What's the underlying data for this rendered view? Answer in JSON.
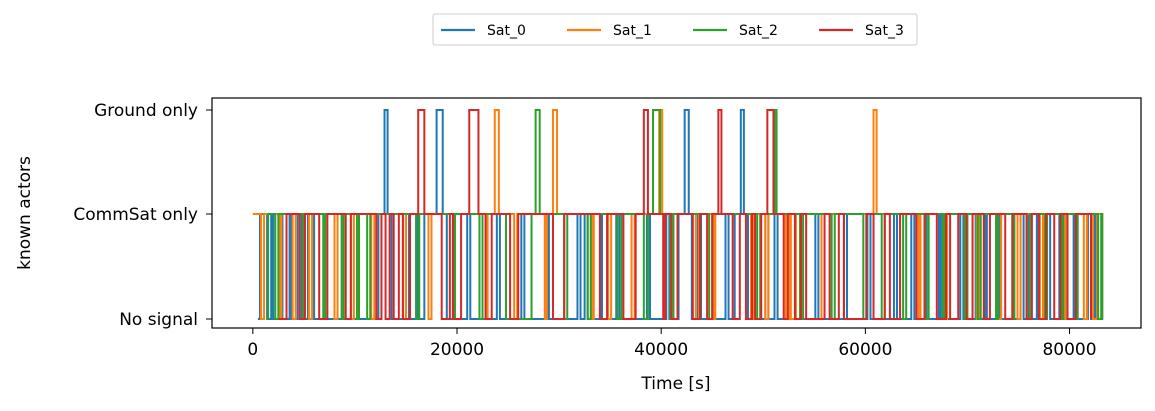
{
  "chart_data": {
    "type": "line",
    "step": true,
    "xlabel": "Time [s]",
    "ylabel": "known actors",
    "xlim": [
      -4000,
      87000
    ],
    "x_ticks": [
      0,
      20000,
      40000,
      60000,
      80000
    ],
    "x_tick_labels": [
      "0",
      "20000",
      "40000",
      "60000",
      "80000"
    ],
    "y_levels": [
      0,
      1,
      2
    ],
    "y_tick_labels": [
      "No signal",
      "CommSat only",
      "Ground only"
    ],
    "legend": {
      "placement": "top-center",
      "columns": 4
    },
    "series": [
      {
        "name": "Sat_0",
        "color": "#1f77b4",
        "levels": [
          0,
          1,
          0,
          1,
          0,
          1,
          0,
          1,
          0,
          1,
          0,
          1,
          0,
          1,
          2,
          1,
          0,
          1,
          0,
          1,
          0,
          1,
          2,
          1,
          0,
          1,
          0,
          1,
          0,
          1,
          0,
          1,
          0,
          1,
          0,
          1,
          0,
          1,
          0,
          1,
          0,
          1,
          0,
          1,
          0,
          1,
          2,
          1,
          0,
          1,
          0,
          1,
          0,
          1,
          2,
          1,
          0,
          1,
          0,
          1,
          0,
          1,
          0,
          1,
          0,
          1,
          0,
          1,
          0,
          1,
          0,
          1,
          0,
          1,
          0,
          1,
          0,
          1,
          0,
          1,
          0,
          1,
          0,
          1,
          0,
          1,
          0,
          1,
          0,
          1,
          0,
          1,
          0,
          1,
          0,
          1,
          0,
          1,
          0,
          1,
          0,
          1
        ],
        "changes": [
          500,
          700,
          1400,
          1800,
          2000,
          2600,
          2900,
          3600,
          3800,
          4400,
          4800,
          5400,
          6000,
          12300,
          12900,
          13200,
          13600,
          15000,
          15300,
          16000,
          16200,
          16800,
          18000,
          18600,
          19000,
          21000,
          21300,
          23900,
          24200,
          26300,
          26600,
          28800,
          29000,
          31800,
          32100,
          32500,
          32800,
          34000,
          34200,
          35600,
          35900,
          38600,
          38900,
          40500,
          40800,
          41700,
          42300,
          42700,
          43000,
          43600,
          43900,
          46300,
          46600,
          47200,
          47800,
          48100,
          48500,
          50200,
          50500,
          51100,
          51400,
          55100,
          55400,
          57900,
          58200,
          60200,
          60500,
          62800,
          63100,
          64500,
          64800,
          65800,
          66000,
          67200,
          67400,
          69300,
          69600,
          70800,
          71100,
          71700,
          71900,
          73000,
          73200,
          75200,
          75500,
          76000,
          76300,
          76800,
          77000,
          77700,
          78100,
          79000,
          79300,
          80400,
          80700,
          81800,
          82100,
          82400,
          82600,
          83200
        ]
      },
      {
        "name": "Sat_1",
        "color": "#ff7f0e",
        "levels": [
          1,
          0,
          1,
          0,
          1,
          0,
          1,
          0,
          1,
          0,
          1,
          0,
          1,
          0,
          1,
          0,
          1,
          0,
          1,
          0,
          1,
          2,
          1,
          0,
          1,
          0,
          1,
          2,
          1,
          0,
          1,
          0,
          1,
          0,
          1,
          2,
          1,
          0,
          1,
          0,
          1,
          0,
          1,
          0,
          1,
          0,
          1,
          0,
          1,
          0,
          1,
          2,
          1,
          0,
          1,
          0,
          1,
          0,
          1,
          0,
          1,
          0,
          1,
          0,
          1,
          0,
          1,
          0,
          1,
          0,
          1,
          0,
          1,
          0,
          1,
          0,
          1,
          0,
          1,
          0,
          1,
          0,
          1,
          0,
          1,
          0,
          1,
          0,
          1,
          0,
          1,
          0,
          1,
          0
        ],
        "changes": [
          0,
          800,
          1100,
          2600,
          2800,
          3900,
          4200,
          5500,
          5800,
          8000,
          8300,
          9600,
          9900,
          11600,
          11900,
          14700,
          15000,
          17200,
          17500,
          22800,
          23000,
          23700,
          24100,
          25600,
          25900,
          28600,
          28800,
          29400,
          29800,
          33200,
          33400,
          34800,
          35100,
          37100,
          37400,
          39800,
          40100,
          43400,
          43700,
          45100,
          45300,
          48800,
          49100,
          50200,
          50500,
          52200,
          52500,
          52700,
          53200,
          55700,
          56000,
          60800,
          61100,
          65200,
          65400,
          67700,
          68000,
          70900,
          71200,
          73000,
          73300,
          74900,
          75200,
          77100,
          77400,
          79300,
          79600,
          81400,
          81700,
          82300,
          82700,
          83200
        ]
      },
      {
        "name": "Sat_2",
        "color": "#2ca02c",
        "levels": [
          0,
          1,
          0,
          1,
          0,
          1,
          0,
          1,
          0,
          1,
          0,
          1,
          0,
          1,
          0,
          1,
          0,
          1,
          0,
          1,
          0,
          1,
          2,
          1,
          0,
          1,
          0,
          1,
          0,
          1,
          0,
          1,
          2,
          1,
          0,
          1,
          0,
          1,
          0,
          1,
          2,
          1,
          0,
          1,
          0,
          1,
          0,
          1,
          0,
          1,
          0,
          1,
          0,
          1,
          0,
          1,
          0,
          1,
          0,
          1,
          0,
          1,
          0,
          1,
          0,
          1,
          0,
          1,
          0,
          1,
          0,
          1,
          0,
          1,
          0,
          1,
          0,
          1,
          0,
          1,
          0,
          1,
          0,
          1,
          0,
          1,
          0,
          1,
          0,
          1,
          0,
          1,
          0,
          1,
          0,
          1,
          0,
          1
        ],
        "changes": [
          1300,
          1500,
          2200,
          2500,
          4900,
          5100,
          6900,
          7100,
          8700,
          8900,
          10200,
          10400,
          11200,
          11500,
          16000,
          16300,
          19600,
          19800,
          22200,
          22500,
          24800,
          27300,
          27700,
          28100,
          30500,
          30800,
          32800,
          33100,
          35700,
          36100,
          38300,
          38700,
          39200,
          39900,
          40900,
          41200,
          44700,
          45000,
          49400,
          49700,
          51100,
          51300,
          53600,
          53900,
          56700,
          57000,
          59800,
          60100,
          61600,
          61900,
          63700,
          64000,
          65900,
          66200,
          67600,
          67800,
          69700,
          70000,
          71000,
          71300,
          72800,
          73000,
          74400,
          74600,
          75800,
          76100,
          77600,
          77800,
          79200,
          79400,
          80600,
          80800,
          82800,
          83100,
          83200
        ]
      },
      {
        "name": "Sat_3",
        "color": "#d62728",
        "levels": [
          0,
          1,
          0,
          1,
          0,
          1,
          0,
          1,
          0,
          1,
          0,
          1,
          0,
          1,
          0,
          1,
          2,
          1,
          0,
          1,
          0,
          1,
          2,
          1,
          0,
          1,
          0,
          1,
          0,
          1,
          0,
          1,
          0,
          1,
          2,
          1,
          0,
          1,
          0,
          1,
          0,
          1,
          0,
          1,
          2,
          1,
          0,
          1,
          0,
          1,
          0,
          1,
          2,
          1,
          0,
          1,
          0,
          1,
          0,
          1,
          0,
          1,
          0,
          1,
          0,
          1,
          0,
          1,
          0,
          1,
          0,
          1,
          0,
          1,
          0,
          1,
          0,
          1,
          0,
          1,
          0,
          1,
          0,
          1,
          0,
          1,
          0,
          1,
          0,
          1,
          0,
          1,
          0
        ],
        "changes": [
          2500,
          3300,
          4600,
          5100,
          6500,
          7300,
          9100,
          9600,
          12100,
          12600,
          13000,
          13400,
          13800,
          14300,
          14700,
          15400,
          16200,
          16800,
          18500,
          19300,
          19600,
          20400,
          21200,
          22100,
          22800,
          23400,
          25200,
          26000,
          29400,
          30500,
          34000,
          34700,
          36300,
          37500,
          38300,
          38700,
          40200,
          40400,
          41000,
          41600,
          43100,
          43800,
          44500,
          45000,
          45600,
          45900,
          47000,
          47700,
          48300,
          48900,
          49200,
          49800,
          50400,
          51000,
          52000,
          52400,
          53100,
          53700,
          54200,
          56000,
          56500,
          57400,
          57900,
          60100,
          60800,
          61900,
          62400,
          63400,
          65000,
          65800,
          67000,
          67900,
          68300,
          69100,
          69900,
          70500,
          71600,
          72200,
          73700,
          74400,
          75800,
          76300,
          77000,
          77700,
          78500,
          79100,
          79800,
          80600,
          82100
        ]
      }
    ]
  }
}
